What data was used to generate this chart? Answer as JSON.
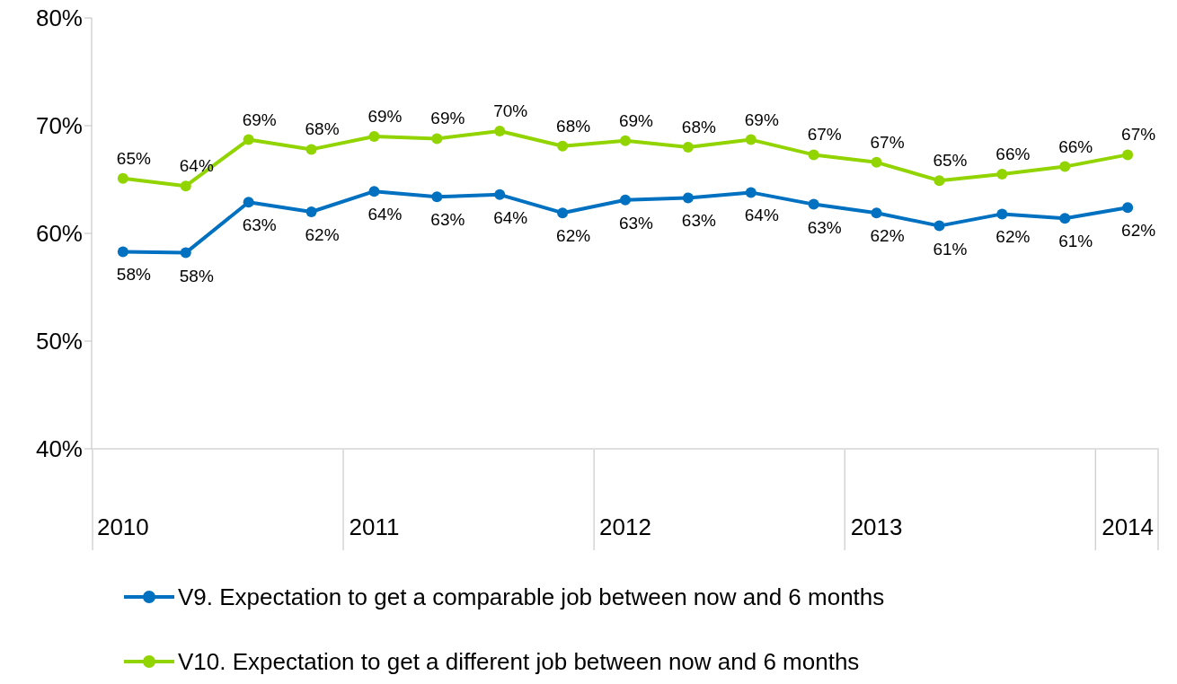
{
  "chart_data": {
    "type": "line",
    "categories": [
      "2010",
      null,
      null,
      null,
      "2011",
      null,
      null,
      null,
      "2012",
      null,
      null,
      null,
      "2013",
      null,
      null,
      null,
      "2014"
    ],
    "series": [
      {
        "name": "V9. Expectation to get a comparable job between now and 6 months",
        "color": "#0070c0",
        "values": [
          58.3,
          58.2,
          62.9,
          62.0,
          63.9,
          63.4,
          63.6,
          61.9,
          63.1,
          63.3,
          63.8,
          62.7,
          61.9,
          60.7,
          61.8,
          61.4,
          62.4
        ],
        "value_labels": [
          "58%",
          "58%",
          "63%",
          "62%",
          "64%",
          "63%",
          "64%",
          "62%",
          "63%",
          "63%",
          "64%",
          "63%",
          "62%",
          "61%",
          "62%",
          "61%",
          "62%"
        ]
      },
      {
        "name": "V10. Expectation to get a different job between now and 6 months",
        "color": "#92d400",
        "values": [
          65.1,
          64.4,
          68.7,
          67.8,
          69.0,
          68.8,
          69.5,
          68.1,
          68.6,
          68.0,
          68.7,
          67.3,
          66.6,
          64.9,
          65.5,
          66.2,
          67.3
        ],
        "value_labels": [
          "65%",
          "64%",
          "69%",
          "68%",
          "69%",
          "69%",
          "70%",
          "68%",
          "69%",
          "68%",
          "69%",
          "67%",
          "67%",
          "65%",
          "66%",
          "66%",
          "67%"
        ]
      }
    ],
    "ylim": [
      40,
      80
    ],
    "yticks": [
      {
        "value": 40,
        "label": "40%"
      },
      {
        "value": 50,
        "label": "50%"
      },
      {
        "value": 60,
        "label": "60%"
      },
      {
        "value": 70,
        "label": "70%"
      },
      {
        "value": 80,
        "label": "80%"
      }
    ],
    "grid": false,
    "legend": "bottom",
    "marker": "circle",
    "line_style": "solid"
  }
}
